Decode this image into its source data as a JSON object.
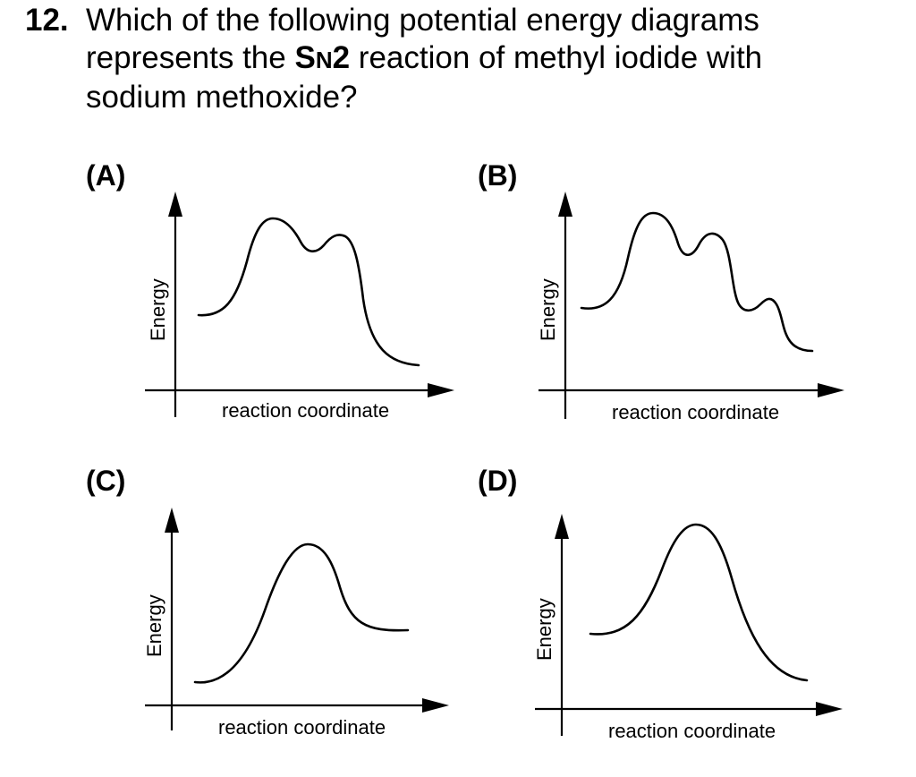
{
  "question": {
    "number": "12.",
    "line1": "Which of the following potential energy diagrams",
    "line2_pre": "represents the ",
    "line2_bold_s": "S",
    "line2_bold_n": "N",
    "line2_bold_2": "2",
    "line2_post": " reaction of methyl iodide with",
    "line3": "sodium methoxide?"
  },
  "options": [
    {
      "label": "(A)",
      "ylabel": "Energy",
      "xlabel": "reaction coordinate"
    },
    {
      "label": "(B)",
      "ylabel": "Energy",
      "xlabel": "reaction coordinate"
    },
    {
      "label": "(C)",
      "ylabel": "Energy",
      "xlabel": "reaction coordinate"
    },
    {
      "label": "(D)",
      "ylabel": "Energy",
      "xlabel": "reaction coordinate"
    }
  ]
}
